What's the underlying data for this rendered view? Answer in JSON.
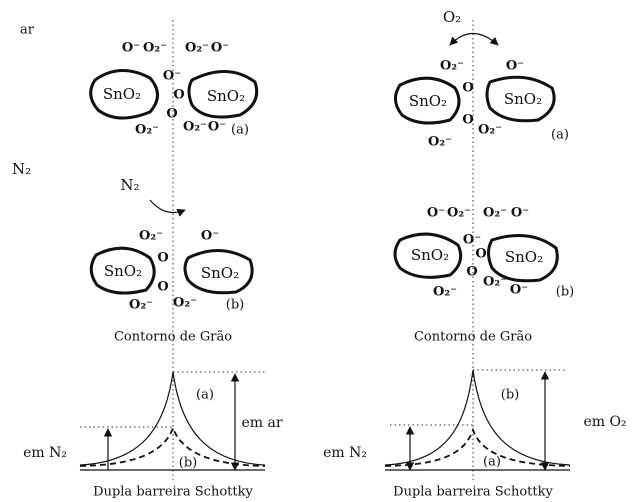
{
  "side_labels": {
    "air": "ar",
    "nitrogen": "N₂"
  },
  "left": {
    "top": {
      "grains": [
        "SnO₂",
        "SnO₂"
      ],
      "ions": [
        "O⁻",
        "O₂⁻",
        "O₂⁻",
        "O⁻",
        "O⁻",
        "O",
        "O",
        "O₂⁻",
        "O⁻",
        "O₂⁻"
      ],
      "state": "(a)"
    },
    "gas": "N₂",
    "bottom": {
      "grains": [
        "SnO₂",
        "SnO₂"
      ],
      "ions": [
        "O₂⁻",
        "O⁻",
        "O",
        "O",
        "O₂⁻",
        "O₂⁻"
      ],
      "state": "(b)"
    },
    "boundary": "Contorno de Grão",
    "plot": {
      "curve_a": "(a)",
      "curve_b": "(b)",
      "high": "em ar",
      "low": "em N₂",
      "caption": "Dupla barreira Schottky"
    }
  },
  "right": {
    "gas": "O₂",
    "top": {
      "grains": [
        "SnO₂",
        "SnO₂"
      ],
      "ions": [
        "O₂⁻",
        "O⁻",
        "O",
        "O",
        "O₂⁻",
        "O₂⁻"
      ],
      "state": "(a)"
    },
    "bottom": {
      "grains": [
        "SnO₂",
        "SnO₂"
      ],
      "ions": [
        "O⁻",
        "O₂⁻",
        "O₂⁻",
        "O⁻",
        "O⁻",
        "O",
        "O",
        "O₂⁻",
        "O₂⁻",
        "O⁻"
      ],
      "state": "(b)"
    },
    "boundary": "Contorno de Grão",
    "plot": {
      "curve_a": "(a)",
      "curve_b": "(b)",
      "high": "em O₂",
      "low": "em N₂",
      "caption": "Dupla barreira Schottky"
    }
  }
}
